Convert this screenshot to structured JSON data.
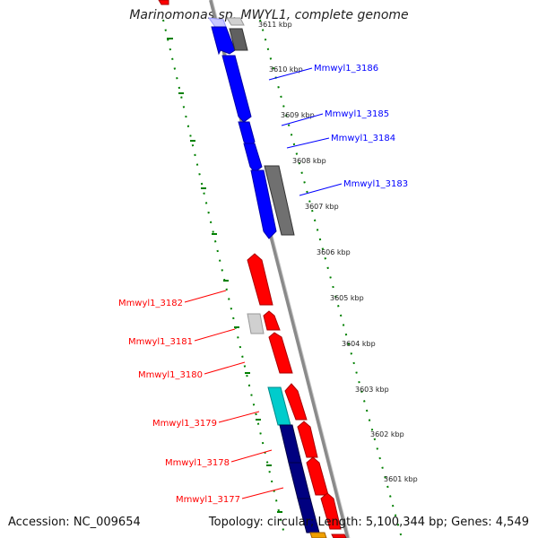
{
  "title": "Marinomonas sp. MWYL1, complete genome",
  "footer": {
    "accession": "Accession: NC_009654",
    "summary": "Topology: circular; Length: 5,100,344 bp; Genes: 4,549"
  },
  "colors": {
    "forward_gene": "#ff0000",
    "reverse_gene": "#0000ff",
    "other_gene": "#808080",
    "light_gene": "#c8c8c8",
    "cyan_gene": "#00cccc",
    "navy_gene": "#000080",
    "tick": "#008000",
    "backbone": "#808080"
  },
  "ticks": [
    "3611 kbp",
    "3610 kbp",
    "3609 kbp",
    "3608 kbp",
    "3607 kbp",
    "3606 kbp",
    "3605 kbp",
    "3604 kbp",
    "3603 kbp",
    "3602 kbp",
    "3601 kbp"
  ],
  "genes": [
    {
      "name": "Mmwyl1_3186",
      "strand": "reverse"
    },
    {
      "name": "Mmwyl1_3185",
      "strand": "reverse"
    },
    {
      "name": "Mmwyl1_3184",
      "strand": "reverse"
    },
    {
      "name": "Mmwyl1_3183",
      "strand": "reverse"
    },
    {
      "name": "Mmwyl1_3182",
      "strand": "forward"
    },
    {
      "name": "Mmwyl1_3181",
      "strand": "forward"
    },
    {
      "name": "Mmwyl1_3180",
      "strand": "forward"
    },
    {
      "name": "Mmwyl1_3179",
      "strand": "forward"
    },
    {
      "name": "Mmwyl1_3178",
      "strand": "forward"
    },
    {
      "name": "Mmwyl1_3177",
      "strand": "forward"
    }
  ]
}
